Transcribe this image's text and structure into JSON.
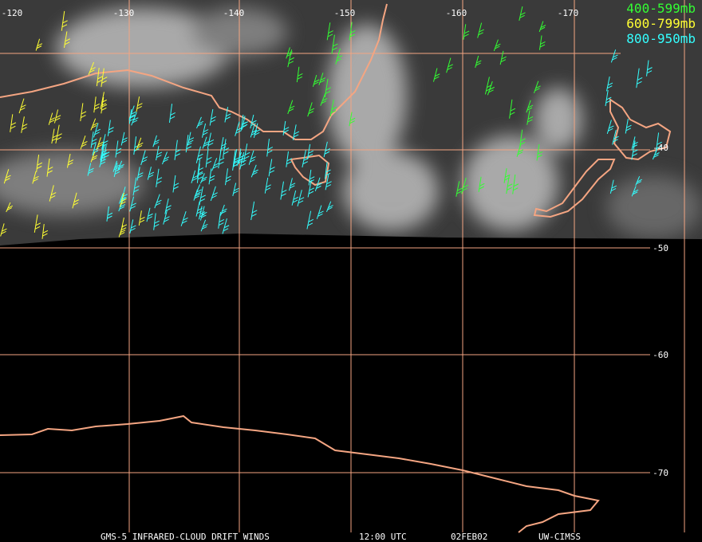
{
  "map": {
    "longitude_labels": [
      "-120",
      "-130",
      "-140",
      "-150",
      "-160",
      "-170"
    ],
    "latitude_labels": [
      "-40",
      "-50",
      "-60",
      "-70"
    ],
    "legend": [
      {
        "label": "400-599mb",
        "color": "#33ff33"
      },
      {
        "label": "600-799mb",
        "color": "#ffff33"
      },
      {
        "label": "800-950mb",
        "color": "#33ffff"
      }
    ],
    "footer": [
      "GMS-5 INFRARED-CLOUD DRIFT WINDS",
      "12:00 UTC",
      "02FEB02",
      "UW-CIMSS"
    ]
  }
}
